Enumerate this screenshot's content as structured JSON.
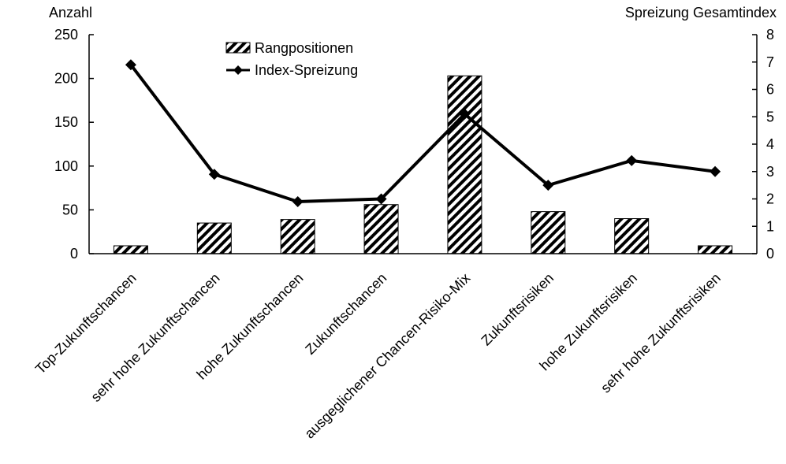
{
  "chart_data": {
    "type": "bar+line",
    "categories": [
      "Top-Zukunftschancen",
      "sehr hohe Zukunftschancen",
      "hohe Zukunftschancen",
      "Zukunftschancen",
      "ausgeglichener Chancen-Risiko-Mix",
      "Zukunftsrisiken",
      "hohe Zukunftsrisiken",
      "sehr hohe Zukunftsrisiken"
    ],
    "series": [
      {
        "name": "Rangpositionen",
        "type": "bar",
        "axis": "left",
        "pattern": "diagonal-hatch",
        "values": [
          9,
          35,
          39,
          56,
          203,
          48,
          40,
          9
        ]
      },
      {
        "name": "Index-Spreizung",
        "type": "line",
        "axis": "right",
        "marker": "diamond",
        "values": [
          6.9,
          2.9,
          1.9,
          2.0,
          5.1,
          2.5,
          3.4,
          3.0
        ]
      }
    ],
    "ylabel": "Anzahl",
    "y2label": "Spreizung Gesamtindex",
    "ylim": [
      0,
      250
    ],
    "yticks": [
      "0",
      "50",
      "100",
      "150",
      "200",
      "250"
    ],
    "y2lim": [
      0,
      8
    ],
    "y2ticks": [
      "0",
      "1",
      "2",
      "3",
      "4",
      "5",
      "6",
      "7",
      "8"
    ],
    "grid": false,
    "legend_position": "top-center",
    "colors": {
      "line": "#000000",
      "bar_stroke": "#000000",
      "bar_fill": "#ffffff"
    }
  }
}
